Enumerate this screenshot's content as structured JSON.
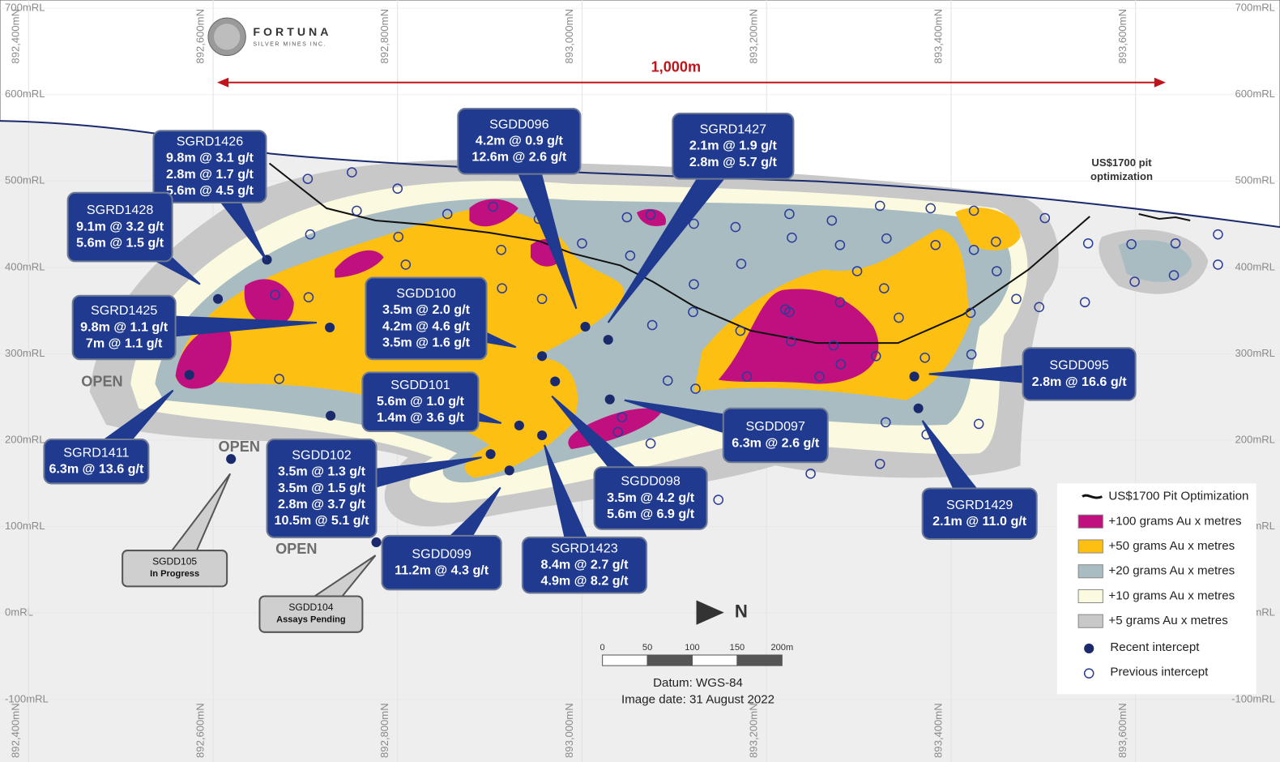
{
  "header": {
    "logo_name": "FORTUNA",
    "logo_sub": "SILVER MINES INC."
  },
  "scale_top": "1,000m",
  "elevations": [
    "700mRL",
    "600mRL",
    "500mRL",
    "400mRL",
    "300mRL",
    "200mRL",
    "100mRL",
    "0mRL",
    "-100mRL"
  ],
  "northings": [
    "892,400mN",
    "892,600mN",
    "892,800mN",
    "893,000mN",
    "893,200mN",
    "893,400mN",
    "893,600mN"
  ],
  "pit_label": [
    "US$1700 pit",
    "optimization"
  ],
  "open_labels": [
    "OPEN",
    "OPEN",
    "OPEN"
  ],
  "callouts": [
    {
      "hole": "SGRD1426",
      "intercepts": [
        "9.8m @ 3.1 g/t",
        "2.8m @ 1.7 g/t",
        "5.6m @ 4.5 g/t"
      ]
    },
    {
      "hole": "SGRD1428",
      "intercepts": [
        "9.1m @ 3.2 g/t",
        "5.6m @ 1.5 g/t"
      ]
    },
    {
      "hole": "SGRD1425",
      "intercepts": [
        "9.8m @ 1.1 g/t",
        "7m @ 1.1 g/t"
      ]
    },
    {
      "hole": "SGRD1411",
      "intercepts": [
        "6.3m @ 13.6 g/t"
      ]
    },
    {
      "hole": "SGDD096",
      "intercepts": [
        "4.2m @ 0.9 g/t",
        "12.6m @ 2.6 g/t"
      ]
    },
    {
      "hole": "SGRD1427",
      "intercepts": [
        "2.1m @ 1.9 g/t",
        "2.8m @ 5.7 g/t"
      ]
    },
    {
      "hole": "SGDD100",
      "intercepts": [
        "3.5m @ 2.0 g/t",
        "4.2m @ 4.6 g/t",
        "3.5m @ 1.6 g/t"
      ]
    },
    {
      "hole": "SGDD101",
      "intercepts": [
        "5.6m @ 1.0 g/t",
        "1.4m @ 3.6 g/t"
      ]
    },
    {
      "hole": "SGDD102",
      "intercepts": [
        "3.5m @ 1.3 g/t",
        "3.5m @ 1.5 g/t",
        "2.8m @ 3.7 g/t",
        "10.5m @ 5.1 g/t"
      ]
    },
    {
      "hole": "SGDD099",
      "intercepts": [
        "11.2m @ 4.3 g/t"
      ]
    },
    {
      "hole": "SGRD1423",
      "intercepts": [
        "8.4m @ 2.7 g/t",
        "4.9m @ 8.2 g/t"
      ]
    },
    {
      "hole": "SGDD098",
      "intercepts": [
        "3.5m @ 4.2 g/t",
        "5.6m @ 6.9 g/t"
      ]
    },
    {
      "hole": "SGDD097",
      "intercepts": [
        "6.3m @ 2.6 g/t"
      ]
    },
    {
      "hole": "SGDD095",
      "intercepts": [
        "2.8m @ 16.6 g/t"
      ]
    },
    {
      "hole": "SGRD1429",
      "intercepts": [
        "2.1m @ 11.0 g/t"
      ]
    }
  ],
  "status_callouts": [
    {
      "hole": "SGDD105",
      "status": "In Progress"
    },
    {
      "hole": "SGDD104",
      "status": "Assays Pending"
    }
  ],
  "legend": [
    "US$1700 Pit Optimization",
    "+100 grams Au x metres",
    "+50 grams Au x metres",
    "+20 grams Au x metres",
    "+10 grams Au x metres",
    "+5 grams Au x metres",
    "Recent intercept",
    "Previous intercept"
  ],
  "scale_bar": [
    "0",
    "50",
    "100",
    "150",
    "200m"
  ],
  "north": "N",
  "footer": [
    "Datum: WGS-84",
    "Image date: 31 August 2022"
  ]
}
